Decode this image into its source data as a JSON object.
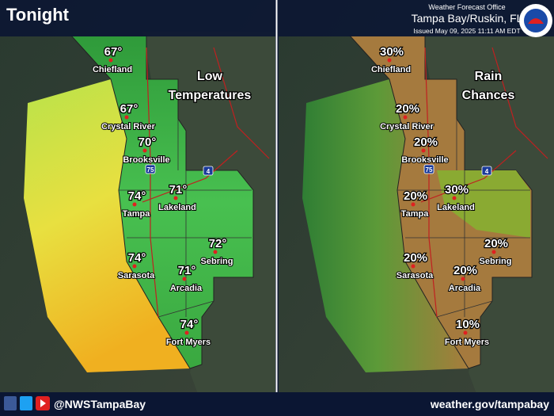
{
  "header": {
    "title": "Tonight",
    "office": "Weather Forecast Office",
    "location": "Tampa Bay/Ruskin, FL",
    "issued": "Issued May 09, 2025 11:11 AM EDT"
  },
  "panels": [
    {
      "title_lines": [
        "Low",
        "Temperatures"
      ],
      "cities": [
        {
          "name": "Chiefland",
          "value": "67°"
        },
        {
          "name": "Crystal River",
          "value": "67°"
        },
        {
          "name": "Brooksville",
          "value": "70°"
        },
        {
          "name": "Tampa",
          "value": "74°"
        },
        {
          "name": "Lakeland",
          "value": "71°"
        },
        {
          "name": "Sebring",
          "value": "72°"
        },
        {
          "name": "Sarasota",
          "value": "74°"
        },
        {
          "name": "Arcadia",
          "value": "71°"
        },
        {
          "name": "Fort Myers",
          "value": "74°"
        }
      ]
    },
    {
      "title_lines": [
        "Rain",
        "Chances"
      ],
      "cities": [
        {
          "name": "Chiefland",
          "value": "30%"
        },
        {
          "name": "Crystal River",
          "value": "20%"
        },
        {
          "name": "Brooksville",
          "value": "20%"
        },
        {
          "name": "Tampa",
          "value": "20%"
        },
        {
          "name": "Lakeland",
          "value": "30%"
        },
        {
          "name": "Sebring",
          "value": "20%"
        },
        {
          "name": "Sarasota",
          "value": "20%"
        },
        {
          "name": "Arcadia",
          "value": "20%"
        },
        {
          "name": "Fort Myers",
          "value": "10%"
        }
      ]
    }
  ],
  "highways": [
    "75",
    "4"
  ],
  "footer": {
    "social": "@NWSTampaBay",
    "website": "weather.gov/tampabay"
  }
}
